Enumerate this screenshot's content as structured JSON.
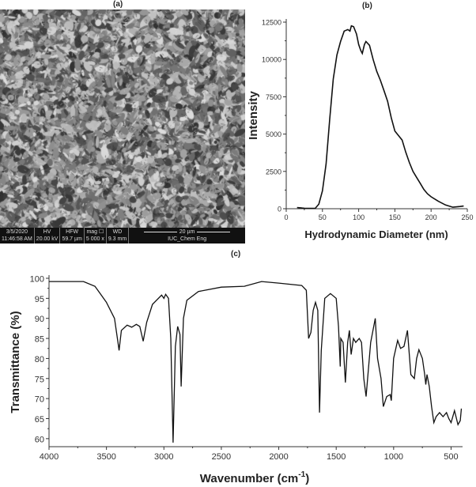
{
  "panels": {
    "a": "(a)",
    "b": "(b)",
    "c": "(c)"
  },
  "sem": {
    "date": "3/5/2020",
    "time": "11:46:58 AM",
    "hv_label": "HV",
    "hv": "20.00 kV",
    "hfw_label": "HFW",
    "hfw": "59.7 µm",
    "mag_label": "mag ☐",
    "mag": "5 000 x",
    "wd_label": "WD",
    "wd": "9.3 mm",
    "scale_bar": "20 µm",
    "institution": "IUC_Chem Eng"
  },
  "chart_data": [
    {
      "type": "line",
      "title": "(b)",
      "xlabel": "Hydrodynamic Diameter (nm)",
      "ylabel": "Intensity",
      "xlim": [
        0,
        250
      ],
      "ylim": [
        0,
        12500
      ],
      "xticks": [
        0,
        50,
        100,
        150,
        200,
        250
      ],
      "yticks": [
        0,
        2500,
        5000,
        7500,
        10000,
        12500
      ],
      "grid": false,
      "color": "#111111",
      "x": [
        15,
        25,
        40,
        45,
        50,
        55,
        60,
        65,
        70,
        75,
        80,
        85,
        88,
        90,
        93,
        97,
        100,
        103,
        105,
        108,
        110,
        115,
        120,
        125,
        130,
        135,
        140,
        145,
        150,
        155,
        160,
        165,
        170,
        175,
        180,
        185,
        190,
        195,
        200,
        210,
        220,
        230,
        240,
        245
      ],
      "y": [
        80,
        30,
        20,
        300,
        1200,
        3000,
        6000,
        8700,
        10300,
        11200,
        11900,
        12000,
        11900,
        12250,
        12200,
        11700,
        11000,
        10600,
        10400,
        11000,
        11200,
        10950,
        10000,
        9200,
        8600,
        7900,
        7200,
        6100,
        5200,
        4900,
        4600,
        3800,
        3100,
        2500,
        2100,
        1700,
        1300,
        1000,
        800,
        500,
        250,
        100,
        150,
        180
      ]
    },
    {
      "type": "line",
      "title": "(c)",
      "xlabel": "Wavenumber (cm",
      "xlabel_sup": "-1",
      "xlabel_end": ")",
      "ylabel": "Transmittance (%)",
      "xlim": [
        4000,
        400
      ],
      "ylim": [
        58,
        100
      ],
      "xticks": [
        4000,
        3500,
        3000,
        2500,
        2000,
        1500,
        1000,
        500
      ],
      "yticks": [
        60,
        65,
        70,
        75,
        80,
        85,
        90,
        95,
        100
      ],
      "grid": false,
      "color": "#111111",
      "x": [
        4000,
        3700,
        3600,
        3500,
        3430,
        3400,
        3390,
        3370,
        3320,
        3280,
        3240,
        3210,
        3180,
        3150,
        3100,
        3020,
        3000,
        2985,
        2960,
        2940,
        2920,
        2900,
        2880,
        2860,
        2850,
        2830,
        2800,
        2700,
        2500,
        2300,
        2150,
        2000,
        1800,
        1760,
        1740,
        1720,
        1700,
        1680,
        1660,
        1645,
        1630,
        1600,
        1550,
        1500,
        1480,
        1465,
        1460,
        1440,
        1420,
        1400,
        1385,
        1370,
        1350,
        1330,
        1300,
        1280,
        1260,
        1240,
        1200,
        1160,
        1140,
        1110,
        1090,
        1060,
        1030,
        1020,
        1000,
        965,
        940,
        910,
        880,
        850,
        820,
        800,
        780,
        750,
        730,
        720,
        710,
        690,
        670,
        650,
        630,
        600,
        570,
        540,
        520,
        500,
        470,
        440,
        420,
        410
      ],
      "y": [
        99.2,
        99.2,
        98,
        94,
        90,
        84,
        82,
        87,
        88.3,
        87.8,
        88.5,
        88,
        84.3,
        89,
        93.5,
        95.8,
        95,
        96,
        95,
        85,
        59,
        83,
        88,
        86,
        73,
        90,
        94.5,
        96.7,
        97.8,
        98,
        99.2,
        98.8,
        98.2,
        97,
        85,
        86.5,
        92,
        94,
        92,
        66.5,
        82,
        95,
        96.2,
        95,
        88,
        78,
        85,
        84,
        74,
        84,
        87,
        81,
        85,
        84,
        85,
        84,
        75,
        70.5,
        84,
        90,
        80,
        75,
        68,
        70.5,
        71,
        69.5,
        80,
        84.5,
        82.5,
        83,
        87,
        76,
        75,
        80,
        82.2,
        80,
        76,
        73.5,
        76,
        73,
        68,
        64,
        65.5,
        66.5,
        65.5,
        66.5,
        65,
        64,
        67,
        63.5,
        64.5,
        67.5
      ]
    }
  ]
}
